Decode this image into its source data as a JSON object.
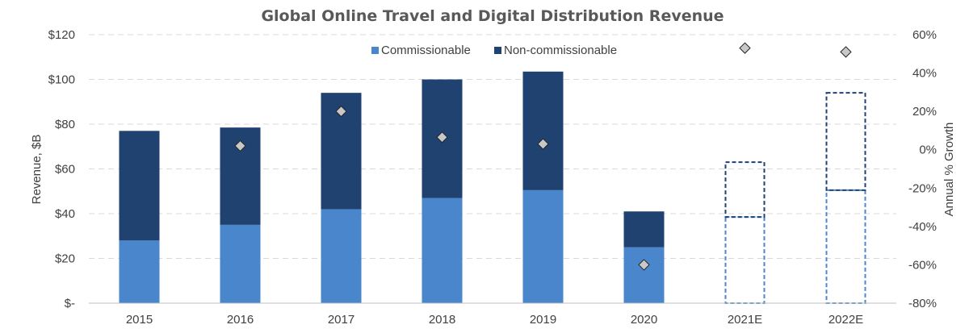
{
  "chart_data": {
    "type": "bar",
    "title": "Global Online Travel and Digital Distribution Revenue",
    "categories": [
      "2015",
      "2016",
      "2017",
      "2018",
      "2019",
      "2020",
      "2021E",
      "2022E"
    ],
    "series": [
      {
        "name": "Commissionable",
        "color": "#4a86cc",
        "values": [
          28,
          35,
          42,
          47,
          50.5,
          25,
          38.5,
          50.5
        ]
      },
      {
        "name": "Non-commissionable",
        "color": "#1f4270",
        "values": [
          49,
          43.5,
          52,
          53,
          53,
          16,
          24.5,
          43.5
        ]
      }
    ],
    "estimated_categories": [
      "2021E",
      "2022E"
    ],
    "growth": {
      "name": "Annual % Growth",
      "values": [
        null,
        2,
        20,
        6.5,
        3,
        -60,
        53,
        51
      ]
    },
    "ylabel": "Revenue, $B",
    "y2label": "Annual % Growth",
    "ylim": [
      0,
      120
    ],
    "y2lim": [
      -80,
      60
    ],
    "y_ticks": [
      "$-",
      "$20",
      "$40",
      "$60",
      "$80",
      "$100",
      "$120"
    ],
    "y2_ticks": [
      "-80%",
      "-60%",
      "-40%",
      "-20%",
      "0%",
      "20%",
      "40%",
      "60%"
    ],
    "legend_position": "top-center",
    "grid": true
  }
}
